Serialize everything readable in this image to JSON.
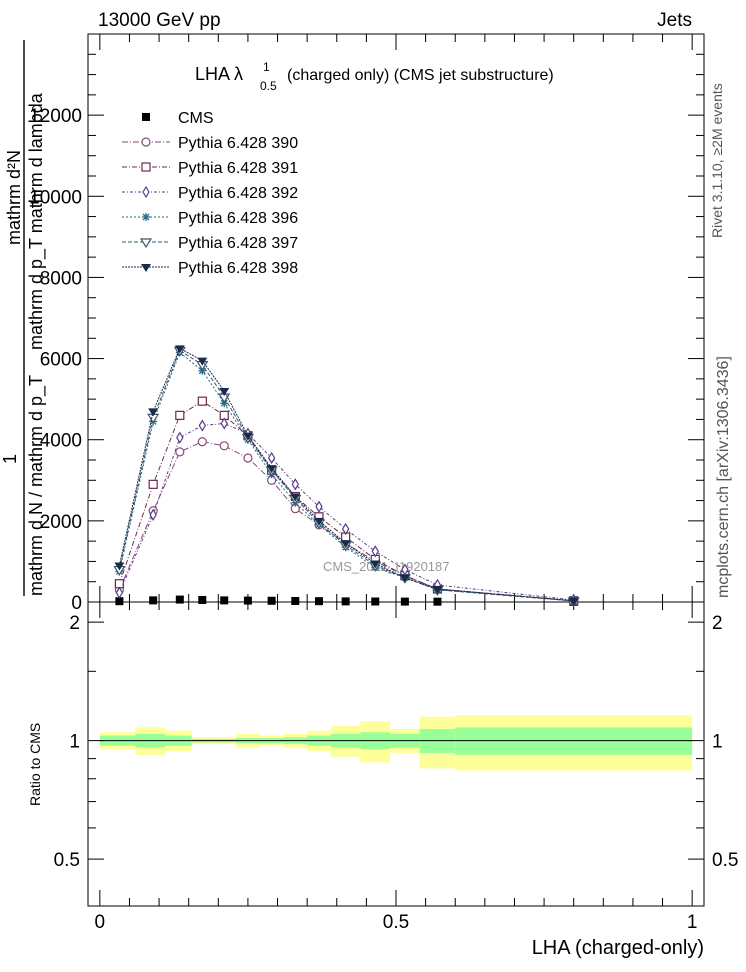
{
  "header": {
    "energy_label": "13000 GeV pp",
    "category_label": "Jets",
    "title_prefix": "LHA λ",
    "title_sup": "1",
    "title_sub": "0.5",
    "title_suffix": "(charged only) (CMS jet substructure)",
    "side_label_rivet": "Rivet 3.1.10, ≥2M events",
    "side_label_mcplots": "mcplots.cern.ch [arXiv:1306.3436]",
    "watermark": "CMS_2021_I1920187"
  },
  "axes": {
    "main_ylabel_top": "mathrm d²N",
    "main_ylabel_mid": "mathrm d p_T mathrm d lambda",
    "main_ylabel_one": "1",
    "main_ylabel_bottom": "mathrm d N / mathrm d p_T",
    "ratio_ylabel": "Ratio to CMS",
    "xlabel": "LHA (charged-only)"
  },
  "chart_data": [
    {
      "type": "line",
      "panel": "main",
      "x": [
        0.033,
        0.09,
        0.135,
        0.173,
        0.21,
        0.25,
        0.29,
        0.33,
        0.37,
        0.415,
        0.465,
        0.515,
        0.57,
        0.8
      ],
      "xlim": [
        -0.02,
        1.02
      ],
      "ylim": [
        0,
        14000
      ],
      "yticks": [
        0,
        2000,
        4000,
        6000,
        8000,
        10000,
        12000
      ],
      "ytick_labels": [
        "0",
        "2000",
        "4000",
        "6000",
        "8000",
        "10000",
        "12000"
      ],
      "series": [
        {
          "name": "CMS",
          "marker": "square-filled",
          "color": "#000000",
          "values": [
            20,
            40,
            60,
            50,
            40,
            35,
            30,
            25,
            20,
            15,
            12,
            10,
            8,
            2
          ]
        },
        {
          "name": "Pythia 6.428 390",
          "marker": "circle-open",
          "color": "#8a4a7a",
          "values": [
            300,
            2250,
            3700,
            3950,
            3850,
            3550,
            3000,
            2300,
            1900,
            1450,
            1000,
            650,
            320,
            30
          ]
        },
        {
          "name": "Pythia 6.428 391",
          "marker": "square-open",
          "color": "#6a2a50",
          "values": [
            450,
            2900,
            4600,
            4950,
            4600,
            4100,
            3250,
            2600,
            2100,
            1600,
            1050,
            650,
            320,
            30
          ]
        },
        {
          "name": "Pythia 6.428 392",
          "marker": "diamond-open",
          "color": "#5a3a8a",
          "values": [
            230,
            2150,
            4050,
            4350,
            4400,
            4150,
            3550,
            2900,
            2350,
            1800,
            1250,
            800,
            420,
            50
          ]
        },
        {
          "name": "Pythia 6.428 396",
          "marker": "star",
          "color": "#2a6a8a",
          "values": [
            750,
            4450,
            6150,
            5700,
            4900,
            4000,
            3150,
            2450,
            1900,
            1350,
            850,
            600,
            300,
            30
          ]
        },
        {
          "name": "Pythia 6.428 397",
          "marker": "triangle-down-open",
          "color": "#3a5a6a",
          "values": [
            800,
            4550,
            6200,
            5850,
            5050,
            4050,
            3250,
            2550,
            1950,
            1400,
            900,
            600,
            300,
            25
          ]
        },
        {
          "name": "Pythia 6.428 398",
          "marker": "triangle-down-filled",
          "color": "#1a2a4a",
          "values": [
            900,
            4700,
            6250,
            5950,
            5200,
            4100,
            3300,
            2600,
            2000,
            1450,
            950,
            600,
            320,
            30
          ]
        }
      ]
    },
    {
      "type": "area",
      "panel": "ratio",
      "ylim": [
        0.38,
        2.25
      ],
      "yticks": [
        0.5,
        1,
        2
      ],
      "ytick_labels": [
        "0.5",
        "1",
        "2"
      ],
      "xticks": [
        0,
        0.5,
        1
      ],
      "xtick_labels": [
        "0",
        "0.5",
        "1"
      ],
      "bin_edges": [
        0,
        0.06,
        0.11,
        0.155,
        0.19,
        0.23,
        0.27,
        0.31,
        0.35,
        0.39,
        0.44,
        0.49,
        0.54,
        0.6,
        1.0
      ],
      "stat_band_halfwidth": [
        0.03,
        0.04,
        0.03,
        0.01,
        0.01,
        0.015,
        0.015,
        0.02,
        0.03,
        0.04,
        0.05,
        0.04,
        0.07,
        0.08
      ],
      "total_band_halfwidth": [
        0.05,
        0.08,
        0.06,
        0.02,
        0.02,
        0.04,
        0.03,
        0.04,
        0.06,
        0.09,
        0.12,
        0.07,
        0.15,
        0.16
      ],
      "reference_value": 1,
      "colors": {
        "stat": "#99ff99",
        "total": "#ffff99"
      }
    }
  ]
}
